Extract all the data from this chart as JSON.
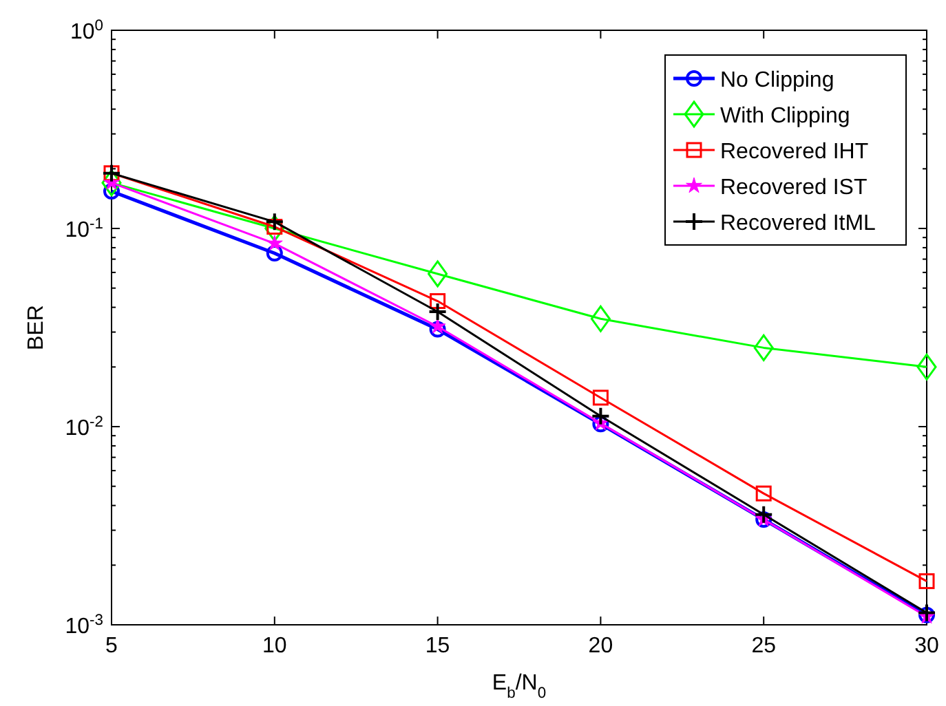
{
  "chart_data": {
    "type": "line",
    "xlabel": "E$_{b}$/N$_{0}$",
    "ylabel": "BER",
    "log": "y",
    "grid": false,
    "legend": "top right",
    "x": [
      5,
      10,
      15,
      20,
      25,
      30
    ],
    "xlim": [
      5,
      30
    ],
    "xticks": [
      5,
      10,
      15,
      20,
      25,
      30
    ],
    "ylim": [
      0.001,
      1
    ],
    "yticks": [
      {
        "value": 0.001,
        "label": "10$^{-3}$"
      },
      {
        "value": 0.01,
        "label": "10$^{-2}$"
      },
      {
        "value": 0.1,
        "label": "10$^{-1}$"
      },
      {
        "value": 1,
        "label": "10$^{0}$"
      }
    ],
    "series": [
      {
        "name": "No Clipping",
        "color": "#0000ff",
        "marker": "circle",
        "values": [
          0.154,
          0.075,
          0.031,
          0.0103,
          0.0034,
          0.00112
        ]
      },
      {
        "name": "With Clipping",
        "color": "#00ff00",
        "marker": "diamond",
        "values": [
          0.17,
          0.1,
          0.059,
          0.035,
          0.025,
          0.02
        ]
      },
      {
        "name": "Recovered IHT",
        "color": "#ff0000",
        "marker": "square",
        "values": [
          0.19,
          0.102,
          0.043,
          0.014,
          0.0046,
          0.00166
        ]
      },
      {
        "name": "Recovered IST",
        "color": "#ff00ff",
        "marker": "star",
        "values": [
          0.17,
          0.084,
          0.032,
          0.0104,
          0.0034,
          0.0011
        ]
      },
      {
        "name": "Recovered ItML",
        "color": "#000000",
        "marker": "cross",
        "values": [
          0.19,
          0.108,
          0.038,
          0.0113,
          0.0036,
          0.00115
        ]
      }
    ]
  }
}
